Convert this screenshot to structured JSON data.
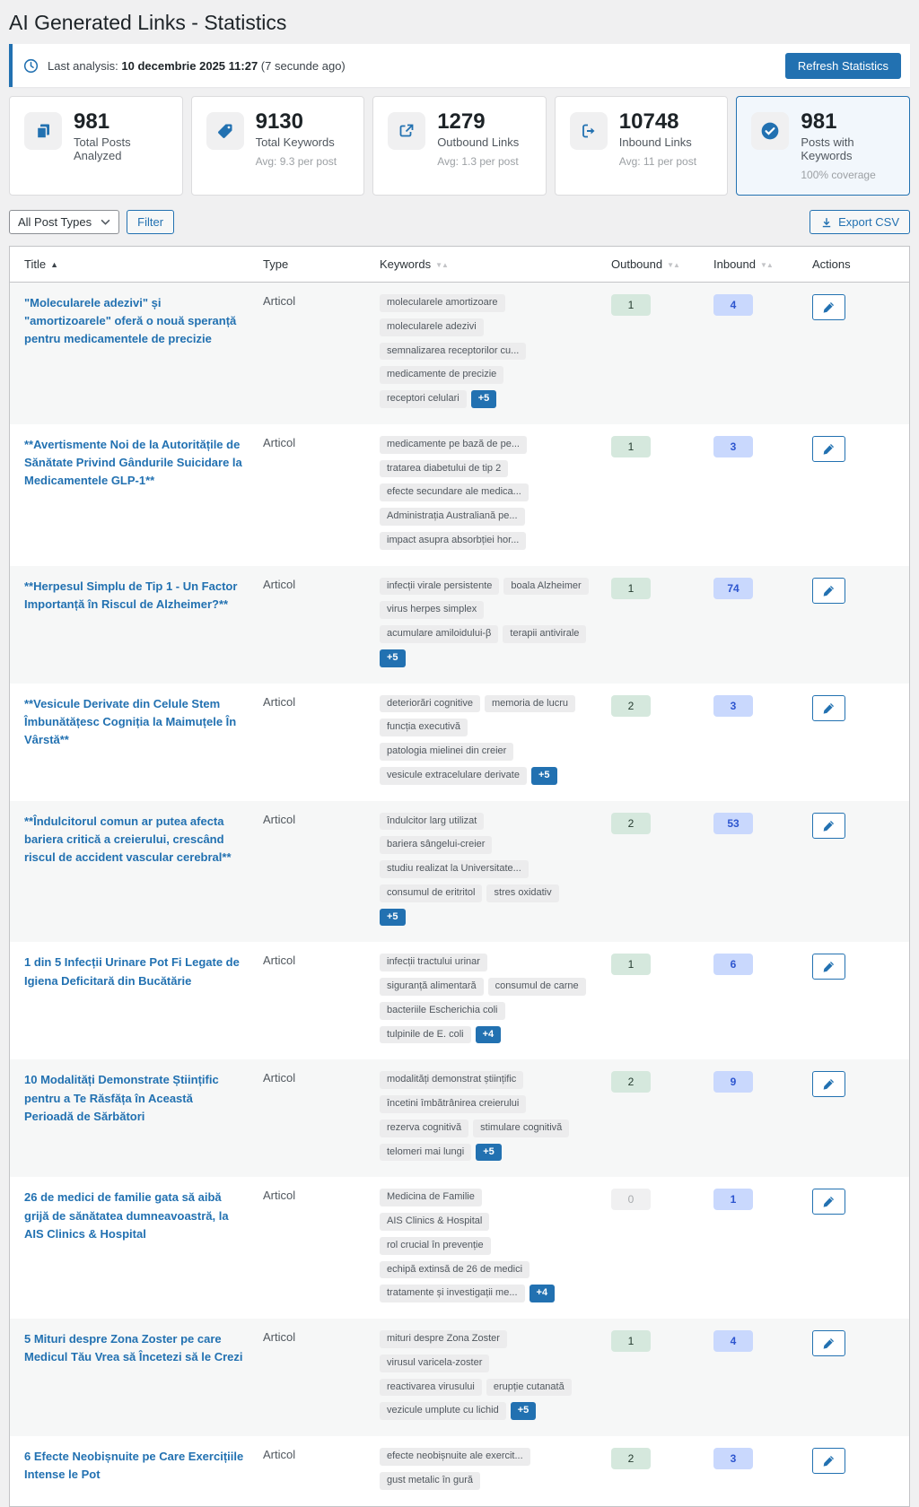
{
  "page": {
    "title": "AI Generated Links - Statistics"
  },
  "notice": {
    "icon": "clock-icon",
    "prefix": "Last analysis:",
    "datetime": "10 decembrie 2025 11:27",
    "ago": "(7 secunde ago)",
    "refresh_label": "Refresh Statistics"
  },
  "stats": [
    {
      "icon": "copy-icon",
      "value": "981",
      "label": "Total Posts Analyzed",
      "sub": "",
      "highlight": false
    },
    {
      "icon": "tag-icon",
      "value": "9130",
      "label": "Total Keywords",
      "sub": "Avg: 9.3 per post",
      "highlight": false
    },
    {
      "icon": "external-link-icon",
      "value": "1279",
      "label": "Outbound Links",
      "sub": "Avg: 1.3 per post",
      "highlight": false
    },
    {
      "icon": "inbound-icon",
      "value": "10748",
      "label": "Inbound Links",
      "sub": "Avg: 11 per post",
      "highlight": false
    },
    {
      "icon": "check-circle-icon",
      "value": "981",
      "label": "Posts with Keywords",
      "sub": "100% coverage",
      "highlight": true
    }
  ],
  "toolbar": {
    "post_type_filter": "All Post Types",
    "filter_label": "Filter",
    "export_label": "Export CSV",
    "export_icon": "download-icon"
  },
  "table": {
    "columns": [
      {
        "label": "Title",
        "sort": "asc"
      },
      {
        "label": "Type",
        "sort": "none"
      },
      {
        "label": "Keywords",
        "sort": "both"
      },
      {
        "label": "Outbound",
        "sort": "both"
      },
      {
        "label": "Inbound",
        "sort": "both"
      },
      {
        "label": "Actions",
        "sort": "none"
      }
    ],
    "rows": [
      {
        "title": "\"Molecularele adezivi\" și \"amortizoarele\" oferă o nouă speranță pentru medicamentele de precizie",
        "type": "Articol",
        "keywords": [
          "molecularele amortizoare",
          "molecularele adezivi",
          "semnalizarea receptorilor cu...",
          "medicamente de precizie",
          "receptori celulari"
        ],
        "more": "+5",
        "outbound": "1",
        "inbound": "4"
      },
      {
        "title": "**Avertismente Noi de la Autoritățile de Sănătate Privind Gândurile Suicidare la Medicamentele GLP-1**",
        "type": "Articol",
        "keywords": [
          "medicamente pe bază de pe...",
          "tratarea diabetului de tip 2",
          "efecte secundare ale medica...",
          "Administrația Australiană pe...",
          "impact asupra absorbției hor..."
        ],
        "more": null,
        "outbound": "1",
        "inbound": "3"
      },
      {
        "title": "**Herpesul Simplu de Tip 1 - Un Factor Importanță în Riscul de Alzheimer?**",
        "type": "Articol",
        "keywords": [
          "infecții virale persistente",
          "boala Alzheimer",
          "virus herpes simplex",
          "acumulare amiloidului-β",
          "terapii antivirale"
        ],
        "more": "+5",
        "outbound": "1",
        "inbound": "74"
      },
      {
        "title": "**Vesicule Derivate din Celule Stem Îmbunătățesc Cogniția la Maimuțele În Vârstă**",
        "type": "Articol",
        "keywords": [
          "deteriorări cognitive",
          "memoria de lucru",
          "funcția executivă",
          "patologia mielinei din creier",
          "vesicule extracelulare derivate"
        ],
        "more": "+5",
        "outbound": "2",
        "inbound": "3"
      },
      {
        "title": "**Îndulcitorul comun ar putea afecta bariera critică a creierului, crescând riscul de accident vascular cerebral**",
        "type": "Articol",
        "keywords": [
          "îndulcitor larg utilizat",
          "bariera sângelui-creier",
          "studiu realizat la Universitate...",
          "consumul de eritritol",
          "stres oxidativ"
        ],
        "more": "+5",
        "outbound": "2",
        "inbound": "53"
      },
      {
        "title": "1 din 5 Infecții Urinare Pot Fi Legate de Igiena Deficitară din Bucătărie",
        "type": "Articol",
        "keywords": [
          "infecții tractului urinar",
          "siguranță alimentară",
          "consumul de carne",
          "bacteriile Escherichia coli",
          "tulpinile de E. coli"
        ],
        "more": "+4",
        "outbound": "1",
        "inbound": "6"
      },
      {
        "title": "10 Modalități Demonstrate Științific pentru a Te Răsfăța în Această Perioadă de Sărbători",
        "type": "Articol",
        "keywords": [
          "modalități demonstrat științific",
          "încetini îmbătrânirea creierului",
          "rezerva cognitivă",
          "stimulare cognitivă",
          "telomeri mai lungi"
        ],
        "more": "+5",
        "outbound": "2",
        "inbound": "9"
      },
      {
        "title": "26 de medici de familie gata să aibă grijă de sănătatea dumneavoastră, la AIS Clinics & Hospital",
        "type": "Articol",
        "keywords": [
          "Medicina de Familie",
          "AIS Clinics & Hospital",
          "rol crucial în prevenție",
          "echipă extinsă de 26 de medici",
          "tratamente și investigații me..."
        ],
        "more": "+4",
        "outbound": "0",
        "inbound": "1"
      },
      {
        "title": "5 Mituri despre Zona Zoster pe care Medicul Tău Vrea să Încetezi să le Crezi",
        "type": "Articol",
        "keywords": [
          "mituri despre Zona Zoster",
          "virusul varicela-zoster",
          "reactivarea virusului",
          "erupție cutanată",
          "vezicule umplute cu lichid"
        ],
        "more": "+5",
        "outbound": "1",
        "inbound": "4"
      },
      {
        "title": "6 Efecte Neobișnuite pe Care Exercițiile Intense le Pot",
        "type": "Articol",
        "keywords": [
          "efecte neobișnuite ale exercit...",
          "gust metalic în gură"
        ],
        "more": null,
        "outbound": "2",
        "inbound": "3"
      }
    ]
  },
  "colors": {
    "accent": "#2271b1",
    "page_bg": "#f0f0f1",
    "outbound_badge_bg": "#d5e8dd",
    "inbound_badge_bg": "#c9d8fd",
    "inbound_badge_text": "#2d55cf",
    "zero_badge_bg": "#f0f0f1",
    "chip_bg": "#ececed",
    "highlight_card_bg": "#f2f7fc"
  }
}
